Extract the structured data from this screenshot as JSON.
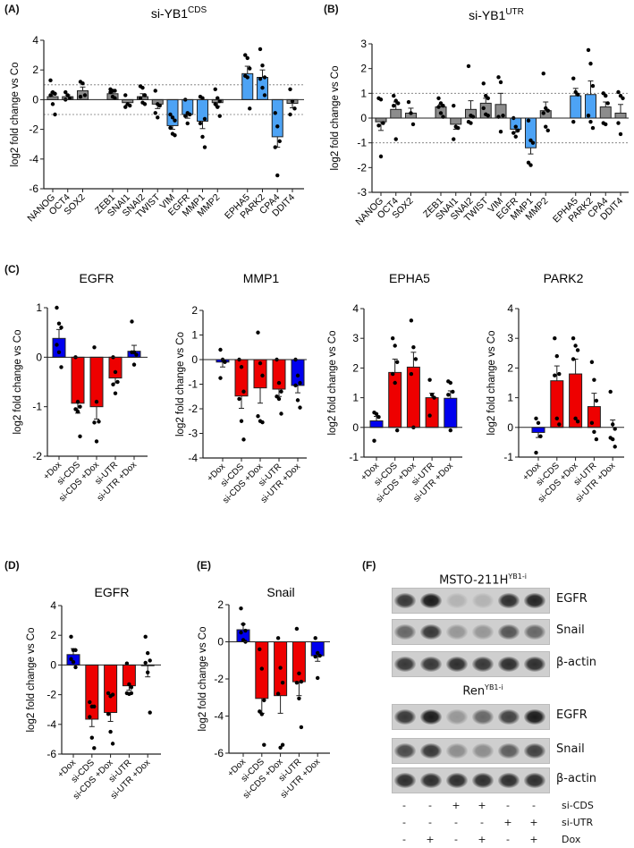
{
  "panel_labels": {
    "a": "(A)",
    "b": "(B)",
    "c": "(C)",
    "d": "(D)",
    "e": "(E)",
    "f": "(F)"
  },
  "colors": {
    "grey": "#8c8c8c",
    "lightblue": "#4da3f5",
    "blue": "#0000ee",
    "red": "#ee0000"
  },
  "chart_data": [
    {
      "id": "A",
      "type": "bar",
      "title": "si-YB1",
      "title_sup": "CDS",
      "ylabel": "log2 fold change vs Co",
      "ylim": [
        -6,
        4
      ],
      "yticks": [
        4,
        2,
        0,
        -2,
        -4,
        -6
      ],
      "ref_lines": [
        1,
        -1
      ],
      "groups": [
        [
          {
            "name": "NANOG",
            "mean": 0.2,
            "sem": 0.3,
            "color": "grey",
            "points": [
              1.3,
              0.5,
              0.4,
              0.3,
              -0.3,
              -1.0
            ]
          },
          {
            "name": "OCT4",
            "mean": 0.2,
            "sem": 0.12,
            "color": "grey",
            "points": [
              0.5,
              0.3,
              0.1,
              0
            ]
          },
          {
            "name": "SOX2",
            "mean": 0.6,
            "sem": 0.25,
            "color": "grey",
            "points": [
              1.2,
              1.1,
              0.3,
              0.2
            ]
          }
        ],
        [
          {
            "name": "ZEB1",
            "mean": 0.4,
            "sem": 0.1,
            "color": "grey",
            "points": [
              0.7,
              0.6,
              0.6,
              0.5,
              0.2,
              0.1
            ]
          },
          {
            "name": "SNAI1",
            "mean": -0.2,
            "sem": 0.15,
            "color": "grey",
            "points": [
              0.3,
              -0.3,
              -0.4,
              -0.5
            ]
          },
          {
            "name": "SNAI2",
            "mean": 0.2,
            "sem": 0.2,
            "color": "grey",
            "points": [
              0.9,
              0.8,
              0.3,
              0.1,
              -0.2,
              -0.3
            ]
          },
          {
            "name": "TWIST",
            "mean": -0.3,
            "sem": 0.3,
            "color": "grey",
            "points": [
              0.6,
              -0.3,
              -0.4,
              -0.9,
              -1.2
            ]
          },
          {
            "name": "VIM",
            "mean": -1.75,
            "sem": 0.25,
            "color": "lightblue",
            "points": [
              -1.0,
              -1.2,
              -1.4,
              -1.9,
              -2.3,
              -2.4
            ]
          },
          {
            "name": "EGFR",
            "mean": -1.0,
            "sem": 0.25,
            "color": "lightblue",
            "points": [
              0,
              -0.9,
              -1.0,
              -1.1,
              -1.6
            ]
          },
          {
            "name": "MMP1",
            "mean": -1.45,
            "sem": 0.5,
            "color": "lightblue",
            "points": [
              0.2,
              0.1,
              -1.3,
              -1.6,
              -2.5,
              -3.2
            ]
          },
          {
            "name": "MMP2",
            "mean": -0.2,
            "sem": 0.25,
            "color": "grey",
            "points": [
              0.7,
              0.1,
              -0.1,
              -0.3,
              -0.5,
              -1.1
            ]
          }
        ],
        [
          {
            "name": "EPHA5",
            "mean": 1.75,
            "sem": 0.5,
            "color": "lightblue",
            "points": [
              3.0,
              2.8,
              2.1,
              1.6,
              1.5,
              -0.6
            ]
          },
          {
            "name": "PARK2",
            "mean": 1.5,
            "sem": 0.5,
            "color": "lightblue",
            "points": [
              3.4,
              2.3,
              1.5,
              1.4,
              0.8,
              0.3
            ]
          },
          {
            "name": "CPA4",
            "mean": -2.5,
            "sem": 0.7,
            "color": "lightblue",
            "points": [
              -0.9,
              -1.8,
              -2.8,
              -3.2,
              -5.1
            ]
          },
          {
            "name": "DDIT4",
            "mean": -0.25,
            "sem": 0.3,
            "color": "grey",
            "points": [
              0.7,
              -0.1,
              -0.6,
              -1.0
            ]
          }
        ]
      ]
    },
    {
      "id": "B",
      "type": "bar",
      "title": "si-YB1",
      "title_sup": "UTR",
      "ylabel": "log2 fold change vs Co",
      "ylim": [
        -3,
        3
      ],
      "yticks": [
        3,
        2,
        1,
        0,
        -1,
        -2,
        -3
      ],
      "ref_lines": [
        1,
        -1
      ],
      "groups": [
        [
          {
            "name": "NANOG",
            "mean": -0.15,
            "sem": 0.35,
            "color": "grey",
            "points": [
              0.8,
              0.75,
              -0.2,
              -0.3,
              -1.55
            ]
          },
          {
            "name": "OCT4",
            "mean": 0.35,
            "sem": 0.3,
            "color": "grey",
            "points": [
              0.9,
              0.7,
              0.6,
              0.5,
              -0.85
            ]
          },
          {
            "name": "SOX2",
            "mean": 0.2,
            "sem": 0.2,
            "color": "grey",
            "points": [
              0.65,
              0.2,
              -0.25
            ]
          }
        ],
        [
          {
            "name": "ZEB1",
            "mean": 0.45,
            "sem": 0.1,
            "color": "grey",
            "points": [
              0.8,
              0.6,
              0.5,
              0.45,
              0.2,
              0.05
            ]
          },
          {
            "name": "SNAI1",
            "mean": -0.25,
            "sem": 0.2,
            "color": "grey",
            "points": [
              0.5,
              -0.35,
              -0.4,
              -0.85
            ]
          },
          {
            "name": "SNAI2",
            "mean": 0.35,
            "sem": 0.35,
            "color": "grey",
            "points": [
              2.1,
              0.1,
              0.05,
              -0.15,
              -0.2
            ]
          },
          {
            "name": "TWIST",
            "mean": 0.6,
            "sem": 0.2,
            "color": "grey",
            "points": [
              1.4,
              0.9,
              0.8,
              0.4,
              0.15,
              0.1
            ]
          },
          {
            "name": "VIM",
            "mean": 0.55,
            "sem": 0.45,
            "color": "grey",
            "points": [
              1.65,
              1.45,
              0.1,
              0.05,
              -0.55
            ]
          },
          {
            "name": "EGFR",
            "mean": -0.45,
            "sem": 0.12,
            "color": "lightblue",
            "points": [
              0,
              -0.35,
              -0.5,
              -0.6,
              -0.75
            ]
          },
          {
            "name": "MMP1",
            "mean": -1.2,
            "sem": 0.25,
            "color": "lightblue",
            "points": [
              -0.1,
              -0.9,
              -1.0,
              -1.8,
              -1.9
            ]
          },
          {
            "name": "MMP2",
            "mean": 0.3,
            "sem": 0.35,
            "color": "grey",
            "points": [
              1.8,
              0.4,
              0.3,
              0.2,
              -0.35,
              -0.5
            ]
          }
        ],
        [
          {
            "name": "EPHA5",
            "mean": 0.9,
            "sem": 0.3,
            "color": "lightblue",
            "points": [
              1.6,
              1.05,
              0.95,
              -0.15
            ]
          },
          {
            "name": "PARK2",
            "mean": 0.95,
            "sem": 0.55,
            "color": "lightblue",
            "points": [
              2.75,
              2.2,
              1.3,
              0.1,
              -0.15,
              -0.4
            ]
          },
          {
            "name": "CPA4",
            "mean": 0.45,
            "sem": 0.2,
            "color": "grey",
            "points": [
              1.0,
              0.9,
              0.6,
              -0.2,
              -0.25
            ]
          },
          {
            "name": "DDIT4",
            "mean": 0.2,
            "sem": 0.35,
            "color": "grey",
            "points": [
              1.05,
              0.9,
              0.8,
              -0.2,
              -0.65
            ]
          }
        ]
      ]
    },
    {
      "id": "C1",
      "type": "bar",
      "title": "EGFR",
      "ylabel": "log2 fold change vs Co",
      "ylim": [
        -2,
        1
      ],
      "yticks": [
        1,
        0,
        -1,
        -2
      ],
      "categories": [
        "+Dox",
        "si-CDS",
        "si-CDS +Dox",
        "si-UTR",
        "si-UTR +Dox"
      ],
      "colors": [
        "blue",
        "red",
        "red",
        "red",
        "blue"
      ],
      "means": [
        0.38,
        -0.93,
        -1.0,
        -0.42,
        0.12
      ],
      "sems": [
        0.18,
        0.2,
        0.25,
        0.1,
        0.12
      ],
      "points": [
        [
          1.0,
          0.68,
          0.6,
          0.25,
          0.1,
          -0.2
        ],
        [
          0,
          -0.9,
          -1.0,
          -1.05,
          -1.1,
          -1.6
        ],
        [
          0.2,
          -0.9,
          -1.3,
          -1.32,
          -1.7
        ],
        [
          0,
          -0.3,
          -0.5,
          -0.55,
          -0.73
        ],
        [
          0.72,
          0.1,
          0.05,
          0.1,
          -0.15
        ]
      ]
    },
    {
      "id": "C2",
      "type": "bar",
      "title": "MMP1",
      "ylabel": "log2 fold change vs Co",
      "ylim": [
        -4,
        2
      ],
      "yticks": [
        2,
        1,
        0,
        -1,
        -2,
        -3,
        -4
      ],
      "categories": [
        "+Dox",
        "si-CDS",
        "si-CDS +Dox",
        "si-UTR",
        "si-UTR +Dox"
      ],
      "colors": [
        "blue",
        "red",
        "red",
        "red",
        "blue"
      ],
      "means": [
        -0.1,
        -1.48,
        -1.15,
        -1.2,
        -1.05
      ],
      "sems": [
        0.2,
        0.5,
        0.62,
        0.3,
        0.3
      ],
      "points": [
        [
          0.4,
          0,
          -0.1,
          -0.75
        ],
        [
          0,
          -0.3,
          -1.3,
          -1.6,
          -2.5,
          -3.25
        ],
        [
          1.1,
          -0.15,
          -0.65,
          -2.3,
          -2.5,
          -2.55
        ],
        [
          0,
          -0.95,
          -1.3,
          -1.5,
          -1.6,
          -2.2
        ],
        [
          0,
          -0.65,
          -0.95,
          -1.05,
          -1.65,
          -1.95
        ]
      ]
    },
    {
      "id": "C3",
      "type": "bar",
      "title": "EPHA5",
      "ylabel": "log2 fold change vs Co",
      "ylim": [
        -1,
        4
      ],
      "yticks": [
        4,
        3,
        2,
        1,
        0,
        -1
      ],
      "categories": [
        "+Dox",
        "si-CDS",
        "si-CDS +Dox",
        "si-UTR",
        "si-UTR +Dox"
      ],
      "colors": [
        "blue",
        "red",
        "red",
        "red",
        "blue"
      ],
      "means": [
        0.22,
        1.85,
        2.03,
        1.0,
        0.98
      ],
      "sems": [
        0.15,
        0.45,
        0.5,
        0.15,
        0.25
      ],
      "points": [
        [
          0.5,
          0.45,
          0.35,
          -0.45
        ],
        [
          3.0,
          2.75,
          2.2,
          1.8,
          1.5,
          -0.1
        ],
        [
          3.6,
          2.7,
          2.3,
          1.8,
          0
        ],
        [
          1.6,
          1.1,
          1.0,
          0.4
        ],
        [
          1.55,
          1.5,
          1.2,
          1.1,
          -0.1
        ]
      ]
    },
    {
      "id": "C4",
      "type": "bar",
      "title": "PARK2",
      "ylabel": "log2 fold change vs Co",
      "ylim": [
        -1,
        4
      ],
      "yticks": [
        4,
        3,
        2,
        1,
        0,
        -1
      ],
      "categories": [
        "+Dox",
        "si-CDS",
        "si-CDS +Dox",
        "si-UTR",
        "si-UTR +Dox"
      ],
      "colors": [
        "blue",
        "red",
        "red",
        "red",
        "blue"
      ],
      "means": [
        -0.17,
        1.57,
        1.8,
        0.7,
        0
      ],
      "sems": [
        0.17,
        0.5,
        0.5,
        0.45,
        0.25
      ],
      "points": [
        [
          0.3,
          0.15,
          -0.3,
          -0.85
        ],
        [
          3.0,
          2.4,
          1.8,
          1.75,
          0.3,
          0.1
        ],
        [
          3.0,
          2.75,
          2.6,
          2.3,
          0.3,
          0.2
        ],
        [
          2.2,
          1.6,
          0.9,
          0.15,
          -0.15,
          -0.4
        ],
        [
          1.2,
          0.1,
          -0.05,
          -0.35,
          -0.4,
          -0.65
        ]
      ]
    },
    {
      "id": "D",
      "type": "bar",
      "title": "EGFR",
      "ylabel": "log2 fold change vs Co",
      "ylim": [
        -6,
        4
      ],
      "yticks": [
        4,
        2,
        0,
        -2,
        -4,
        -6
      ],
      "categories": [
        "+Dox",
        "si-CDS",
        "si-CDS +Dox",
        "si-UTR",
        "si-UTR +Dox"
      ],
      "colors": [
        "blue",
        "red",
        "red",
        "red",
        "blue"
      ],
      "means": [
        0.7,
        -3.65,
        -3.2,
        -1.4,
        -0.05
      ],
      "sems": [
        0.4,
        0.5,
        0.6,
        0.3,
        0.75
      ],
      "points": [
        [
          1.9,
          1.0,
          1.0,
          0.4,
          0.2,
          -0.15
        ],
        [
          -2.5,
          -2.8,
          -2.8,
          -3.5,
          -4.9,
          -5.6
        ],
        [
          -1.9,
          -2.1,
          -2.0,
          -3.3,
          -4.5,
          -5.3
        ],
        [
          0.1,
          -1.3,
          -1.5,
          -1.9,
          -1.95,
          -1.9
        ],
        [
          1.9,
          0.8,
          0.3,
          0.15,
          -0.5,
          -3.2
        ]
      ]
    },
    {
      "id": "E",
      "type": "bar",
      "title": "Snail",
      "ylabel": "log2 fold change vs Co",
      "ylim": [
        -6,
        2
      ],
      "yticks": [
        2,
        0,
        -2,
        -4,
        -6
      ],
      "categories": [
        "+Dox",
        "si-CDS",
        "si-CDS +Dox",
        "si-UTR",
        "si-UTR +Dox"
      ],
      "colors": [
        "blue",
        "red",
        "red",
        "red",
        "blue"
      ],
      "means": [
        0.65,
        -3.05,
        -2.9,
        -2.15,
        -0.75
      ],
      "sems": [
        0.3,
        0.8,
        0.95,
        0.75,
        0.3
      ],
      "points": [
        [
          1.8,
          0.95,
          0.6,
          0.5,
          0.1,
          0
        ],
        [
          -0.4,
          -1.45,
          -3.15,
          -3.75,
          -3.9,
          -5.55
        ],
        [
          0.2,
          -1.4,
          -2.2,
          -2.8,
          -5.7,
          -5.55
        ],
        [
          0.7,
          -1.7,
          -2.15,
          -2.2,
          -3.05,
          -4.6
        ],
        [
          0.2,
          -0.6,
          -0.75,
          -0.8,
          -1.95
        ]
      ]
    }
  ],
  "western_blot": {
    "cell_lines": [
      {
        "name": "MSTO-211H",
        "sup": "YB1-i",
        "blots": [
          {
            "label": "EGFR",
            "intensity": [
              0.8,
              0.95,
              0.15,
              0.15,
              0.85,
              0.9
            ]
          },
          {
            "label": "Snail",
            "intensity": [
              0.55,
              0.8,
              0.3,
              0.3,
              0.65,
              0.55
            ]
          },
          {
            "label": "β-actin",
            "intensity": [
              0.8,
              0.8,
              0.85,
              0.8,
              0.85,
              0.85
            ]
          }
        ]
      },
      {
        "name": "Ren",
        "sup": "YB1-i",
        "blots": [
          {
            "label": "EGFR",
            "intensity": [
              0.8,
              0.95,
              0.3,
              0.55,
              0.75,
              0.95
            ]
          },
          {
            "label": "Snail",
            "intensity": [
              0.7,
              0.8,
              0.35,
              0.35,
              0.6,
              0.75
            ]
          },
          {
            "label": "β-actin",
            "intensity": [
              0.85,
              0.85,
              0.85,
              0.85,
              0.85,
              0.85
            ]
          }
        ]
      }
    ],
    "conditions": [
      {
        "label": "si-CDS",
        "values": [
          "-",
          "-",
          "+",
          "+",
          "-",
          "-"
        ]
      },
      {
        "label": "si-UTR",
        "values": [
          "-",
          "-",
          "-",
          "-",
          "+",
          "+"
        ]
      },
      {
        "label": "Dox",
        "values": [
          "-",
          "+",
          "-",
          "+",
          "-",
          "+"
        ]
      }
    ]
  }
}
